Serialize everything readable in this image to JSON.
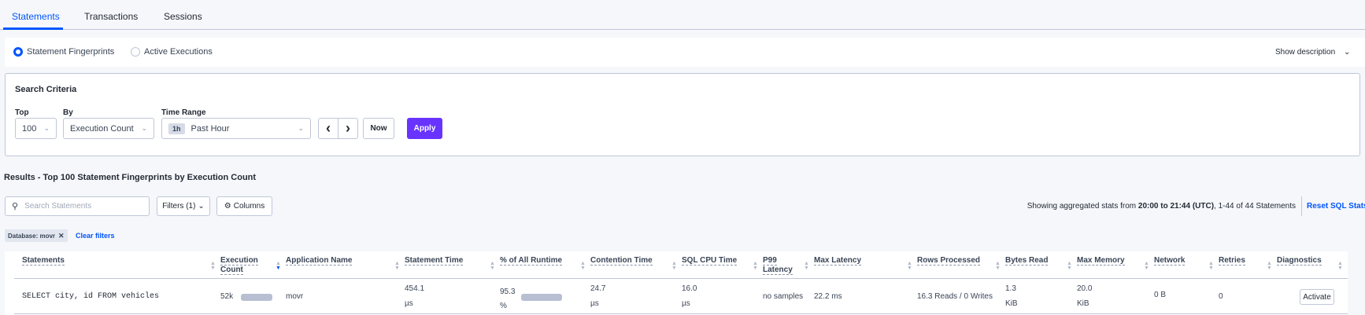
{
  "tabs": [
    {
      "label": "Statements",
      "active": true
    },
    {
      "label": "Transactions"
    },
    {
      "label": "Sessions"
    }
  ],
  "view": {
    "options": [
      {
        "label": "Statement Fingerprints",
        "selected": true
      },
      {
        "label": "Active Executions",
        "selected": false
      }
    ],
    "show_description": "Show description"
  },
  "search_criteria": {
    "title": "Search Criteria",
    "top_label": "Top",
    "top_value": "100",
    "by_label": "By",
    "by_value": "Execution Count",
    "time_range_label": "Time Range",
    "time_range_pill": "1h",
    "time_range_value": "Past Hour",
    "prev": "‹",
    "next": "›",
    "now": "Now",
    "apply": "Apply"
  },
  "results": {
    "title": "Results - Top 100 Statement Fingerprints by Execution Count",
    "search_placeholder": "Search Statements",
    "filters": "Filters (1)",
    "columns": "Columns",
    "stats_prefix": "Showing aggregated stats from ",
    "stats_range": "20:00 to 21:44 (UTC)",
    "stats_suffix": ", 1-44 of 44 Statements",
    "reset": "Reset SQL Stats",
    "chip": "Database: movr",
    "clear": "Clear filters"
  },
  "table": {
    "columns": [
      "Statements",
      "Execution Count",
      "Application Name",
      "Statement Time",
      "% of All Runtime",
      "Contention Time",
      "SQL CPU Time",
      "P99 Latency",
      "Max Latency",
      "Rows Processed",
      "Bytes Read",
      "Max Memory",
      "Network",
      "Retries",
      "Diagnostics"
    ],
    "sorted_column": "Execution Count",
    "sort_direction": "descending",
    "rows": [
      {
        "statement": "SELECT city, id FROM vehicles",
        "execution_count": "52k",
        "application": "movr",
        "statement_time": [
          "454.1",
          "µs"
        ],
        "pct_runtime": [
          "95.3",
          "%"
        ],
        "contention": [
          "24.7",
          "µs"
        ],
        "sql_cpu": [
          "16.0",
          "µs"
        ],
        "p99": "no samples",
        "max_latency": "22.2 ms",
        "rows_processed": "16.3 Reads / 0 Writes",
        "bytes_read": [
          "1.3",
          "KiB"
        ],
        "max_memory": [
          "20.0",
          "KiB"
        ],
        "network": "0 B",
        "retries": "0",
        "diagnostics": "Activate",
        "exec_bar_fraction": 1.0,
        "runtime_bar_fraction": 0.953
      }
    ]
  },
  "colors": {
    "accent": "#0055ff",
    "apply": "#6933ff",
    "bar": "#b8bfd2"
  }
}
